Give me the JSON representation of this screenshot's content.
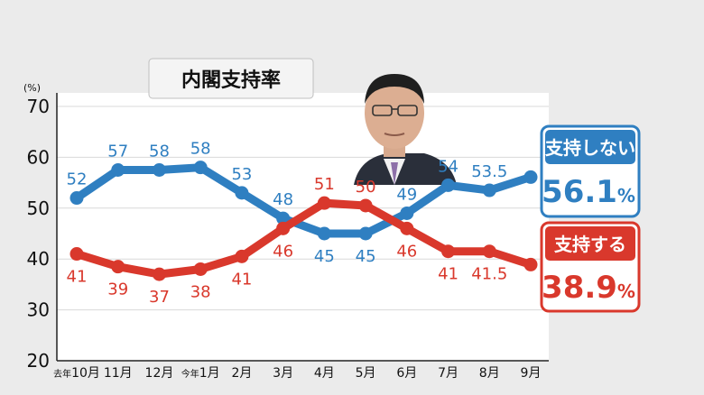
{
  "title": "内閣支持率",
  "unit": "(%)",
  "colors": {
    "disapprove": "#2f7fc1",
    "approve": "#d9382c",
    "background": "#ebebeb",
    "plot": "#ffffff"
  },
  "legend": {
    "disapprove": {
      "label": "支持しない",
      "value": "56.1",
      "pct": "%"
    },
    "approve": {
      "label": "支持する",
      "value": "38.9",
      "pct": "%"
    }
  },
  "chart_data": {
    "type": "line",
    "title": "内閣支持率",
    "ylabel": "(%)",
    "ylim": [
      20,
      70
    ],
    "yticks": [
      20,
      30,
      40,
      50,
      60,
      70
    ],
    "categories": [
      {
        "prefix": "去年",
        "main": "10月"
      },
      {
        "prefix": "",
        "main": "11月"
      },
      {
        "prefix": "",
        "main": "12月"
      },
      {
        "prefix": "今年",
        "main": "1月"
      },
      {
        "prefix": "",
        "main": "2月"
      },
      {
        "prefix": "",
        "main": "3月"
      },
      {
        "prefix": "",
        "main": "4月"
      },
      {
        "prefix": "",
        "main": "5月"
      },
      {
        "prefix": "",
        "main": "6月"
      },
      {
        "prefix": "",
        "main": "7月"
      },
      {
        "prefix": "",
        "main": "8月"
      },
      {
        "prefix": "",
        "main": "9月"
      }
    ],
    "series": [
      {
        "name": "支持しない",
        "key": "disapprove",
        "values": [
          52,
          57.5,
          57.5,
          58,
          53,
          48,
          45,
          45,
          49,
          54.5,
          53.5,
          56.1
        ],
        "labels": [
          "52",
          "57",
          "58",
          "58",
          "53",
          "48",
          "45",
          "45",
          "49",
          "54",
          "53.5",
          ""
        ]
      },
      {
        "name": "支持する",
        "key": "approve",
        "values": [
          41,
          38.5,
          37,
          38,
          40.5,
          46,
          51,
          50.5,
          46,
          41.5,
          41.5,
          38.9
        ],
        "labels": [
          "41",
          "39",
          "37",
          "38",
          "41",
          "46",
          "51",
          "50",
          "46",
          "41",
          "41.5",
          ""
        ]
      }
    ],
    "grid": true,
    "legend_position": "right"
  }
}
